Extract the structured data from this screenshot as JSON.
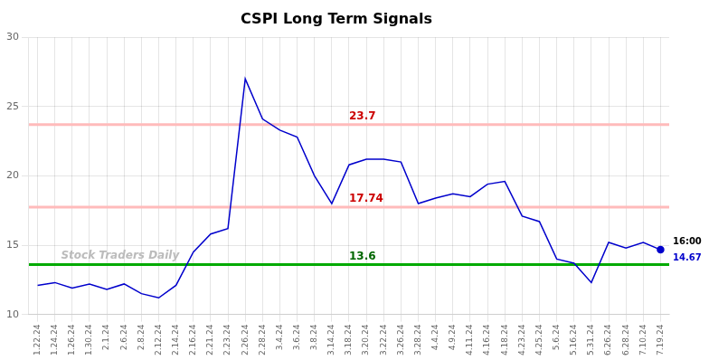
{
  "chart_data": {
    "type": "line",
    "title": "CSPI Long Term Signals",
    "categories": [
      "1.22.24",
      "1.24.24",
      "1.26.24",
      "1.30.24",
      "2.1.24",
      "2.6.24",
      "2.8.24",
      "2.12.24",
      "2.14.24",
      "2.16.24",
      "2.21.24",
      "2.23.24",
      "2.26.24",
      "2.28.24",
      "3.4.24",
      "3.6.24",
      "3.8.24",
      "3.14.24",
      "3.18.24",
      "3.20.24",
      "3.22.24",
      "3.26.24",
      "3.28.24",
      "4.4.24",
      "4.9.24",
      "4.11.24",
      "4.16.24",
      "4.18.24",
      "4.23.24",
      "4.25.24",
      "5.6.24",
      "5.16.24",
      "5.31.24",
      "6.26.24",
      "6.28.24",
      "7.10.24",
      "7.19.24"
    ],
    "values": [
      12.1,
      12.3,
      11.9,
      12.2,
      11.8,
      12.2,
      11.5,
      11.2,
      12.1,
      14.5,
      15.8,
      16.2,
      27.0,
      24.1,
      23.3,
      22.8,
      20.0,
      18.0,
      20.8,
      21.2,
      21.2,
      21.0,
      18.0,
      18.4,
      18.7,
      18.5,
      19.4,
      19.6,
      17.1,
      16.7,
      14.0,
      13.7,
      12.3,
      15.2,
      14.8,
      15.2,
      14.67
    ],
    "color": "#0000cc",
    "ylim": [
      10,
      30
    ],
    "yticks": [
      10,
      15,
      20,
      25,
      30
    ],
    "grid": true,
    "reference_lines": [
      {
        "value": 23.7,
        "label": "23.7",
        "color": "#ffbbbb",
        "label_color": "#cc0000"
      },
      {
        "value": 17.74,
        "label": "17.74",
        "color": "#ffbbbb",
        "label_color": "#cc0000"
      },
      {
        "value": 13.6,
        "label": "13.6",
        "color": "#00aa00",
        "label_color": "#006600"
      }
    ],
    "annotations": [
      {
        "text": "16:00",
        "color": "#000000"
      },
      {
        "text": "14.67",
        "color": "#0000cc"
      }
    ],
    "watermark": "Stock Traders Daily"
  }
}
